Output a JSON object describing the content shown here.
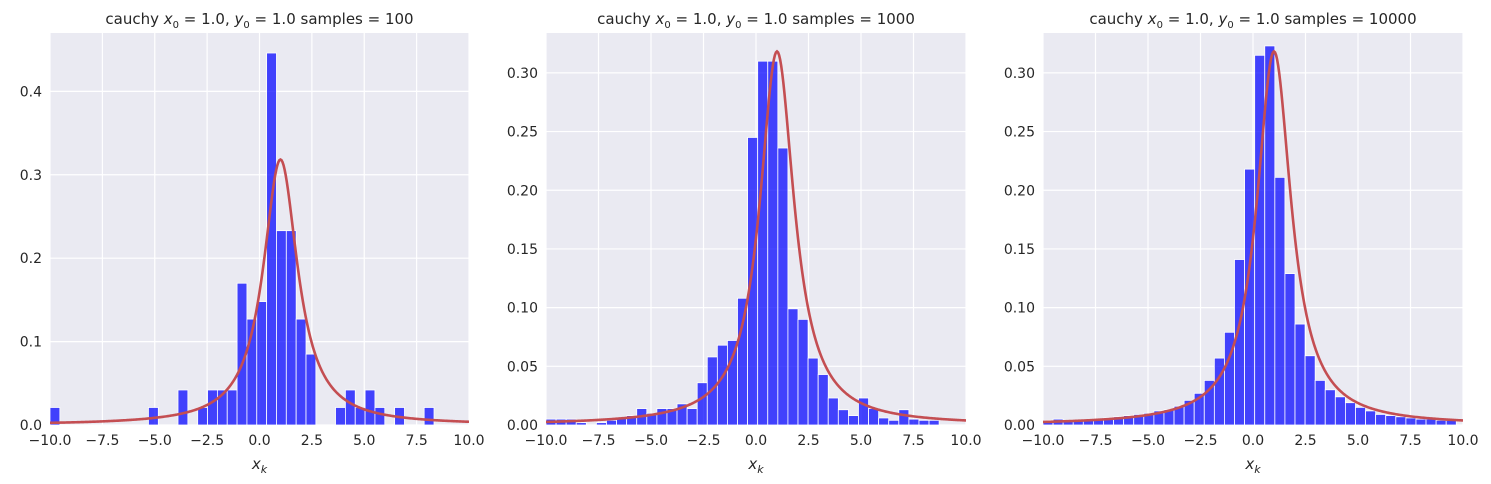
{
  "chart_data": [
    {
      "type": "bar",
      "title_prefix": "cauchy",
      "title_params": "x0 = 1.0, y0 = 1.0",
      "title_samples_label": "samples =",
      "title_samples": "100",
      "xlabel": "x_k",
      "xlim": [
        -10,
        10
      ],
      "ylim": [
        0,
        0.47
      ],
      "xticks": [
        "−10.0",
        "−7.5",
        "−5.0",
        "−2.5",
        "0.0",
        "2.5",
        "5.0",
        "7.5",
        "10.0"
      ],
      "xtick_values": [
        -10,
        -7.5,
        -5,
        -2.5,
        0,
        2.5,
        5,
        7.5,
        10
      ],
      "yticks": [
        "0.0",
        "0.1",
        "0.2",
        "0.3",
        "0.4"
      ],
      "ytick_values": [
        0,
        0.1,
        0.2,
        0.3,
        0.4
      ],
      "bin_edges_start": -10.0,
      "bin_width": 0.47,
      "bars": [
        0.021,
        0,
        0,
        0,
        0,
        0,
        0,
        0,
        0,
        0,
        0.021,
        0,
        0,
        0.042,
        0,
        0.021,
        0.042,
        0.042,
        0.042,
        0.17,
        0.127,
        0.148,
        0.446,
        0.233,
        0.233,
        0.127,
        0.085,
        0,
        0,
        0.021,
        0.042,
        0.021,
        0.042,
        0.021,
        0,
        0.021,
        0,
        0,
        0.021,
        0,
        0,
        0,
        0,
        0
      ],
      "curve": {
        "x0": 1.0,
        "gamma": 1.0
      }
    },
    {
      "type": "bar",
      "title_prefix": "cauchy",
      "title_params": "x0 = 1.0, y0 = 1.0",
      "title_samples_label": "samples =",
      "title_samples": "1000",
      "xlabel": "x_k",
      "xlim": [
        -10,
        10
      ],
      "ylim": [
        0,
        0.334
      ],
      "xticks": [
        "−10.0",
        "−7.5",
        "−5.0",
        "−2.5",
        "0.0",
        "2.5",
        "5.0",
        "7.5",
        "10.0"
      ],
      "xtick_values": [
        -10,
        -7.5,
        -5,
        -2.5,
        0,
        2.5,
        5,
        7.5,
        10
      ],
      "yticks": [
        "0.00",
        "0.05",
        "0.10",
        "0.15",
        "0.20",
        "0.25",
        "0.30"
      ],
      "ytick_values": [
        0,
        0.05,
        0.1,
        0.15,
        0.2,
        0.25,
        0.3
      ],
      "bin_edges_start": -10.0,
      "bin_width": 0.48,
      "bars": [
        0.005,
        0.005,
        0.005,
        0.002,
        0,
        0.002,
        0.004,
        0.006,
        0.008,
        0.014,
        0.01,
        0.014,
        0.014,
        0.018,
        0.014,
        0.036,
        0.058,
        0.068,
        0.072,
        0.108,
        0.245,
        0.31,
        0.31,
        0.236,
        0.099,
        0.09,
        0.057,
        0.043,
        0.023,
        0.013,
        0.008,
        0.023,
        0.014,
        0.006,
        0.004,
        0.013,
        0.005,
        0.004,
        0.004,
        0,
        0
      ],
      "curve": {
        "x0": 1.0,
        "gamma": 1.0
      }
    },
    {
      "type": "bar",
      "title_prefix": "cauchy",
      "title_params": "x0 = 1.0, y0 = 1.0",
      "title_samples_label": "samples =",
      "title_samples": "10000",
      "xlabel": "x_k",
      "xlim": [
        -10,
        10
      ],
      "ylim": [
        0,
        0.334
      ],
      "xticks": [
        "−10.0",
        "−7.5",
        "−5.0",
        "−2.5",
        "0.0",
        "2.5",
        "5.0",
        "7.5",
        "10.0"
      ],
      "xtick_values": [
        -10,
        -7.5,
        -5,
        -2.5,
        0,
        2.5,
        5,
        7.5,
        10
      ],
      "yticks": [
        "0.00",
        "0.05",
        "0.10",
        "0.15",
        "0.20",
        "0.25",
        "0.30"
      ],
      "ytick_values": [
        0,
        0.05,
        0.1,
        0.15,
        0.2,
        0.25,
        0.3
      ],
      "bin_edges_start": -10.0,
      "bin_width": 0.48,
      "bars": [
        0.004,
        0.005,
        0.004,
        0.004,
        0.004,
        0.005,
        0.006,
        0.007,
        0.008,
        0.009,
        0.01,
        0.012,
        0.013,
        0.016,
        0.021,
        0.027,
        0.038,
        0.057,
        0.079,
        0.141,
        0.218,
        0.315,
        0.323,
        0.211,
        0.129,
        0.086,
        0.059,
        0.038,
        0.03,
        0.024,
        0.019,
        0.015,
        0.012,
        0.009,
        0.008,
        0.007,
        0.006,
        0.005,
        0.005,
        0.004,
        0.004
      ],
      "curve": {
        "x0": 1.0,
        "gamma": 1.0
      }
    }
  ],
  "colors": {
    "bar": "#0000ff",
    "curve": "#c44e52",
    "panel_bg": "#eaeaf2",
    "grid": "#ffffff"
  }
}
